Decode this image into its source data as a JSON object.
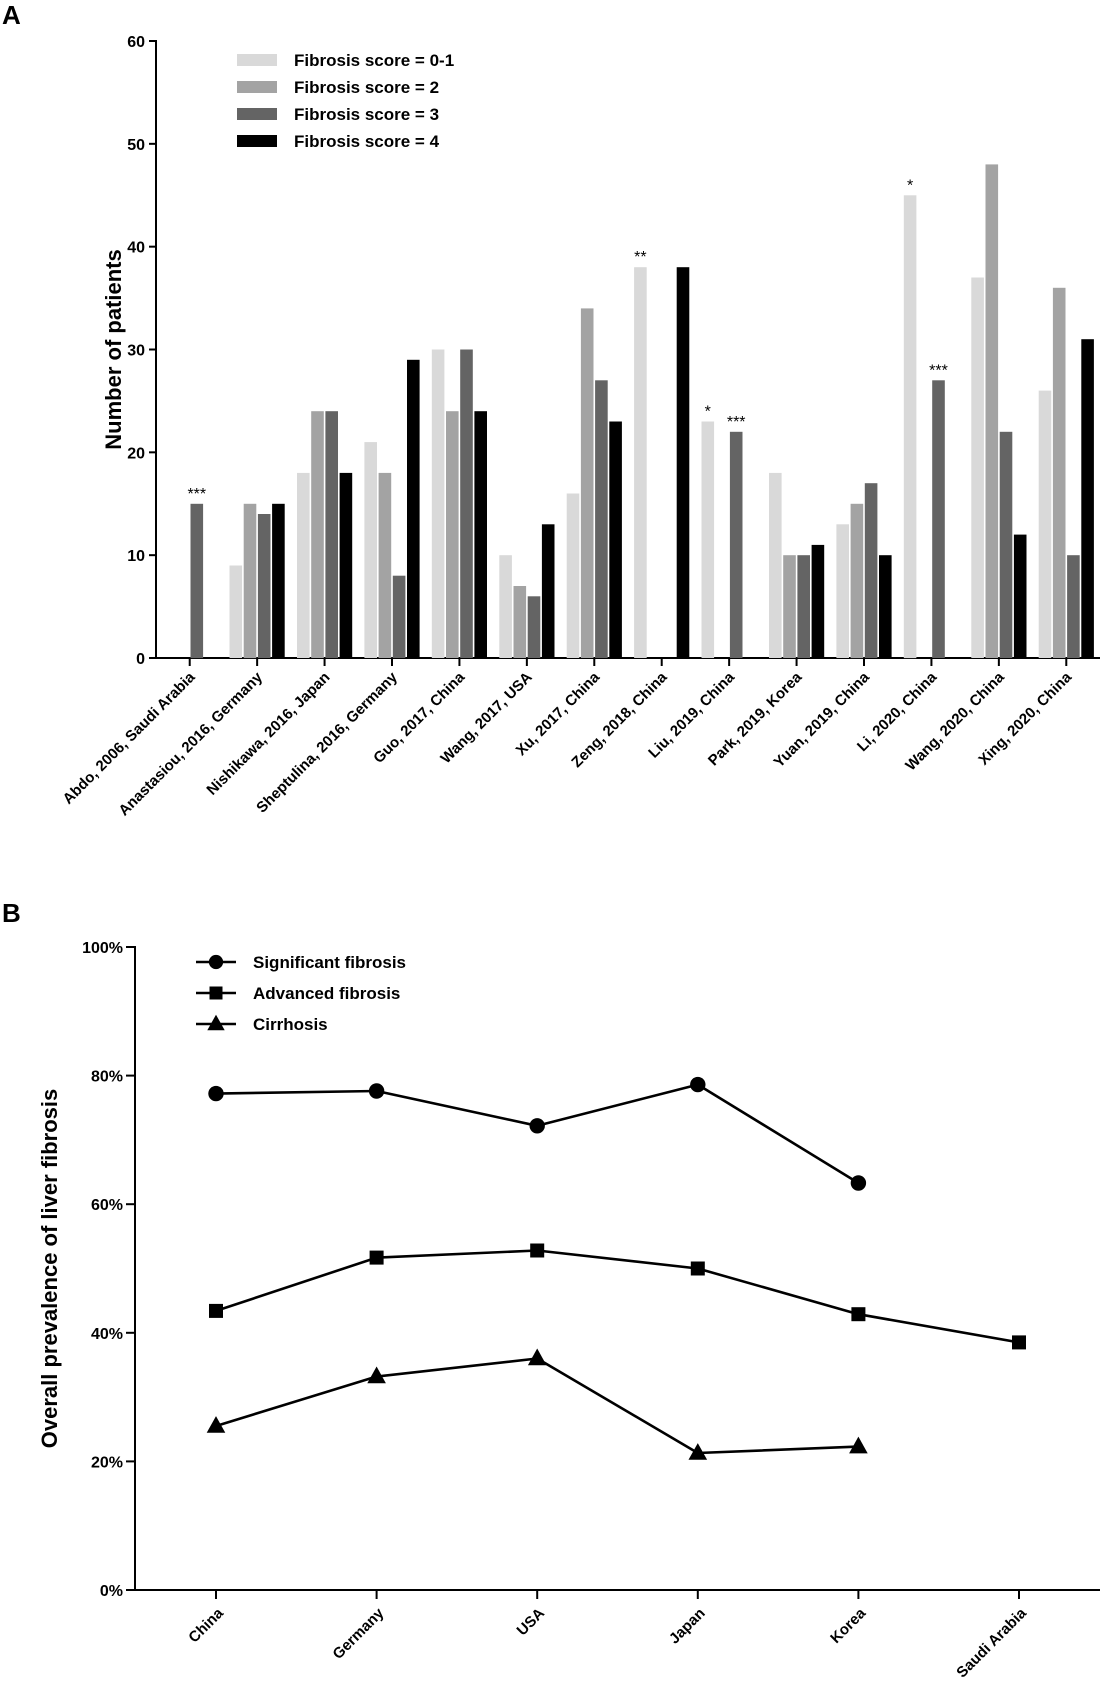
{
  "panels": [
    {
      "letter": "A"
    },
    {
      "letter": "B"
    }
  ],
  "chart_data": [
    {
      "type": "bar",
      "title": "",
      "xlabel": "",
      "ylabel": "Number of patients",
      "ylim": [
        0,
        60
      ],
      "yticks": [
        0,
        10,
        20,
        30,
        40,
        50,
        60
      ],
      "ytick_labels": [
        "0",
        "10",
        "20",
        "30",
        "40",
        "50",
        "60"
      ],
      "legend_position": "top-left",
      "categories": [
        "Abdo, 2006, Saudi Arabia",
        "Anastasiou, 2016, Germany",
        "Nishikawa, 2016, Japan",
        "Sheptulina, 2016, Germany",
        "Guo, 2017, China",
        "Wang, 2017, USA",
        "Xu, 2017, China",
        "Zeng, 2018, China",
        "Liu, 2019, China",
        "Park, 2019, Korea",
        "Yuan, 2019, China",
        "Li, 2020, China",
        "Wang, 2020, China",
        "Xing, 2020, China"
      ],
      "series": [
        {
          "name": "Fibrosis score = 0-1",
          "color": "#d9d9d9",
          "values": [
            null,
            9,
            18,
            21,
            30,
            10,
            16,
            38,
            23,
            18,
            13,
            45,
            37,
            26
          ]
        },
        {
          "name": "Fibrosis score = 2",
          "color": "#a3a3a3",
          "values": [
            null,
            15,
            24,
            18,
            24,
            7,
            34,
            null,
            null,
            10,
            15,
            null,
            48,
            36
          ]
        },
        {
          "name": "Fibrosis score = 3",
          "color": "#646464",
          "values": [
            15,
            14,
            24,
            8,
            30,
            6,
            27,
            null,
            22,
            10,
            17,
            27,
            22,
            10
          ]
        },
        {
          "name": "Fibrosis score = 4",
          "color": "#000000",
          "values": [
            null,
            15,
            18,
            29,
            24,
            13,
            23,
            38,
            null,
            11,
            10,
            null,
            12,
            31
          ]
        }
      ],
      "annotations": [
        {
          "category": "Abdo, 2006, Saudi Arabia",
          "series": "Fibrosis score = 3",
          "text": "***"
        },
        {
          "category": "Zeng, 2018, China",
          "series": "Fibrosis score = 0-1",
          "text": "**"
        },
        {
          "category": "Liu, 2019, China",
          "series": "Fibrosis score = 0-1",
          "text": "*"
        },
        {
          "category": "Liu, 2019, China",
          "series": "Fibrosis score = 3",
          "text": "***"
        },
        {
          "category": "Li, 2020, China",
          "series": "Fibrosis score = 0-1",
          "text": "*"
        },
        {
          "category": "Li, 2020, China",
          "series": "Fibrosis score = 3",
          "text": "***"
        }
      ]
    },
    {
      "type": "line",
      "title": "",
      "xlabel": "",
      "ylabel": "Overall prevalence of liver fibrosis",
      "ylim": [
        0,
        100
      ],
      "yticks": [
        0,
        20,
        40,
        60,
        80,
        100
      ],
      "ytick_labels": [
        "0%",
        "20%",
        "40%",
        "60%",
        "80%",
        "100%"
      ],
      "legend_position": "top-left",
      "categories": [
        "China",
        "Germany",
        "USA",
        "Japan",
        "Korea",
        "Saudi Arabia"
      ],
      "series": [
        {
          "name": "Significant fibrosis",
          "marker": "circle",
          "values": [
            77.2,
            77.6,
            72.2,
            78.6,
            63.3,
            null
          ]
        },
        {
          "name": "Advanced fibrosis",
          "marker": "square",
          "values": [
            43.4,
            51.7,
            52.8,
            50.0,
            42.9,
            38.5
          ]
        },
        {
          "name": "Cirrhosis",
          "marker": "triangle",
          "values": [
            25.5,
            33.2,
            36.0,
            21.3,
            22.3,
            null
          ]
        }
      ]
    }
  ]
}
